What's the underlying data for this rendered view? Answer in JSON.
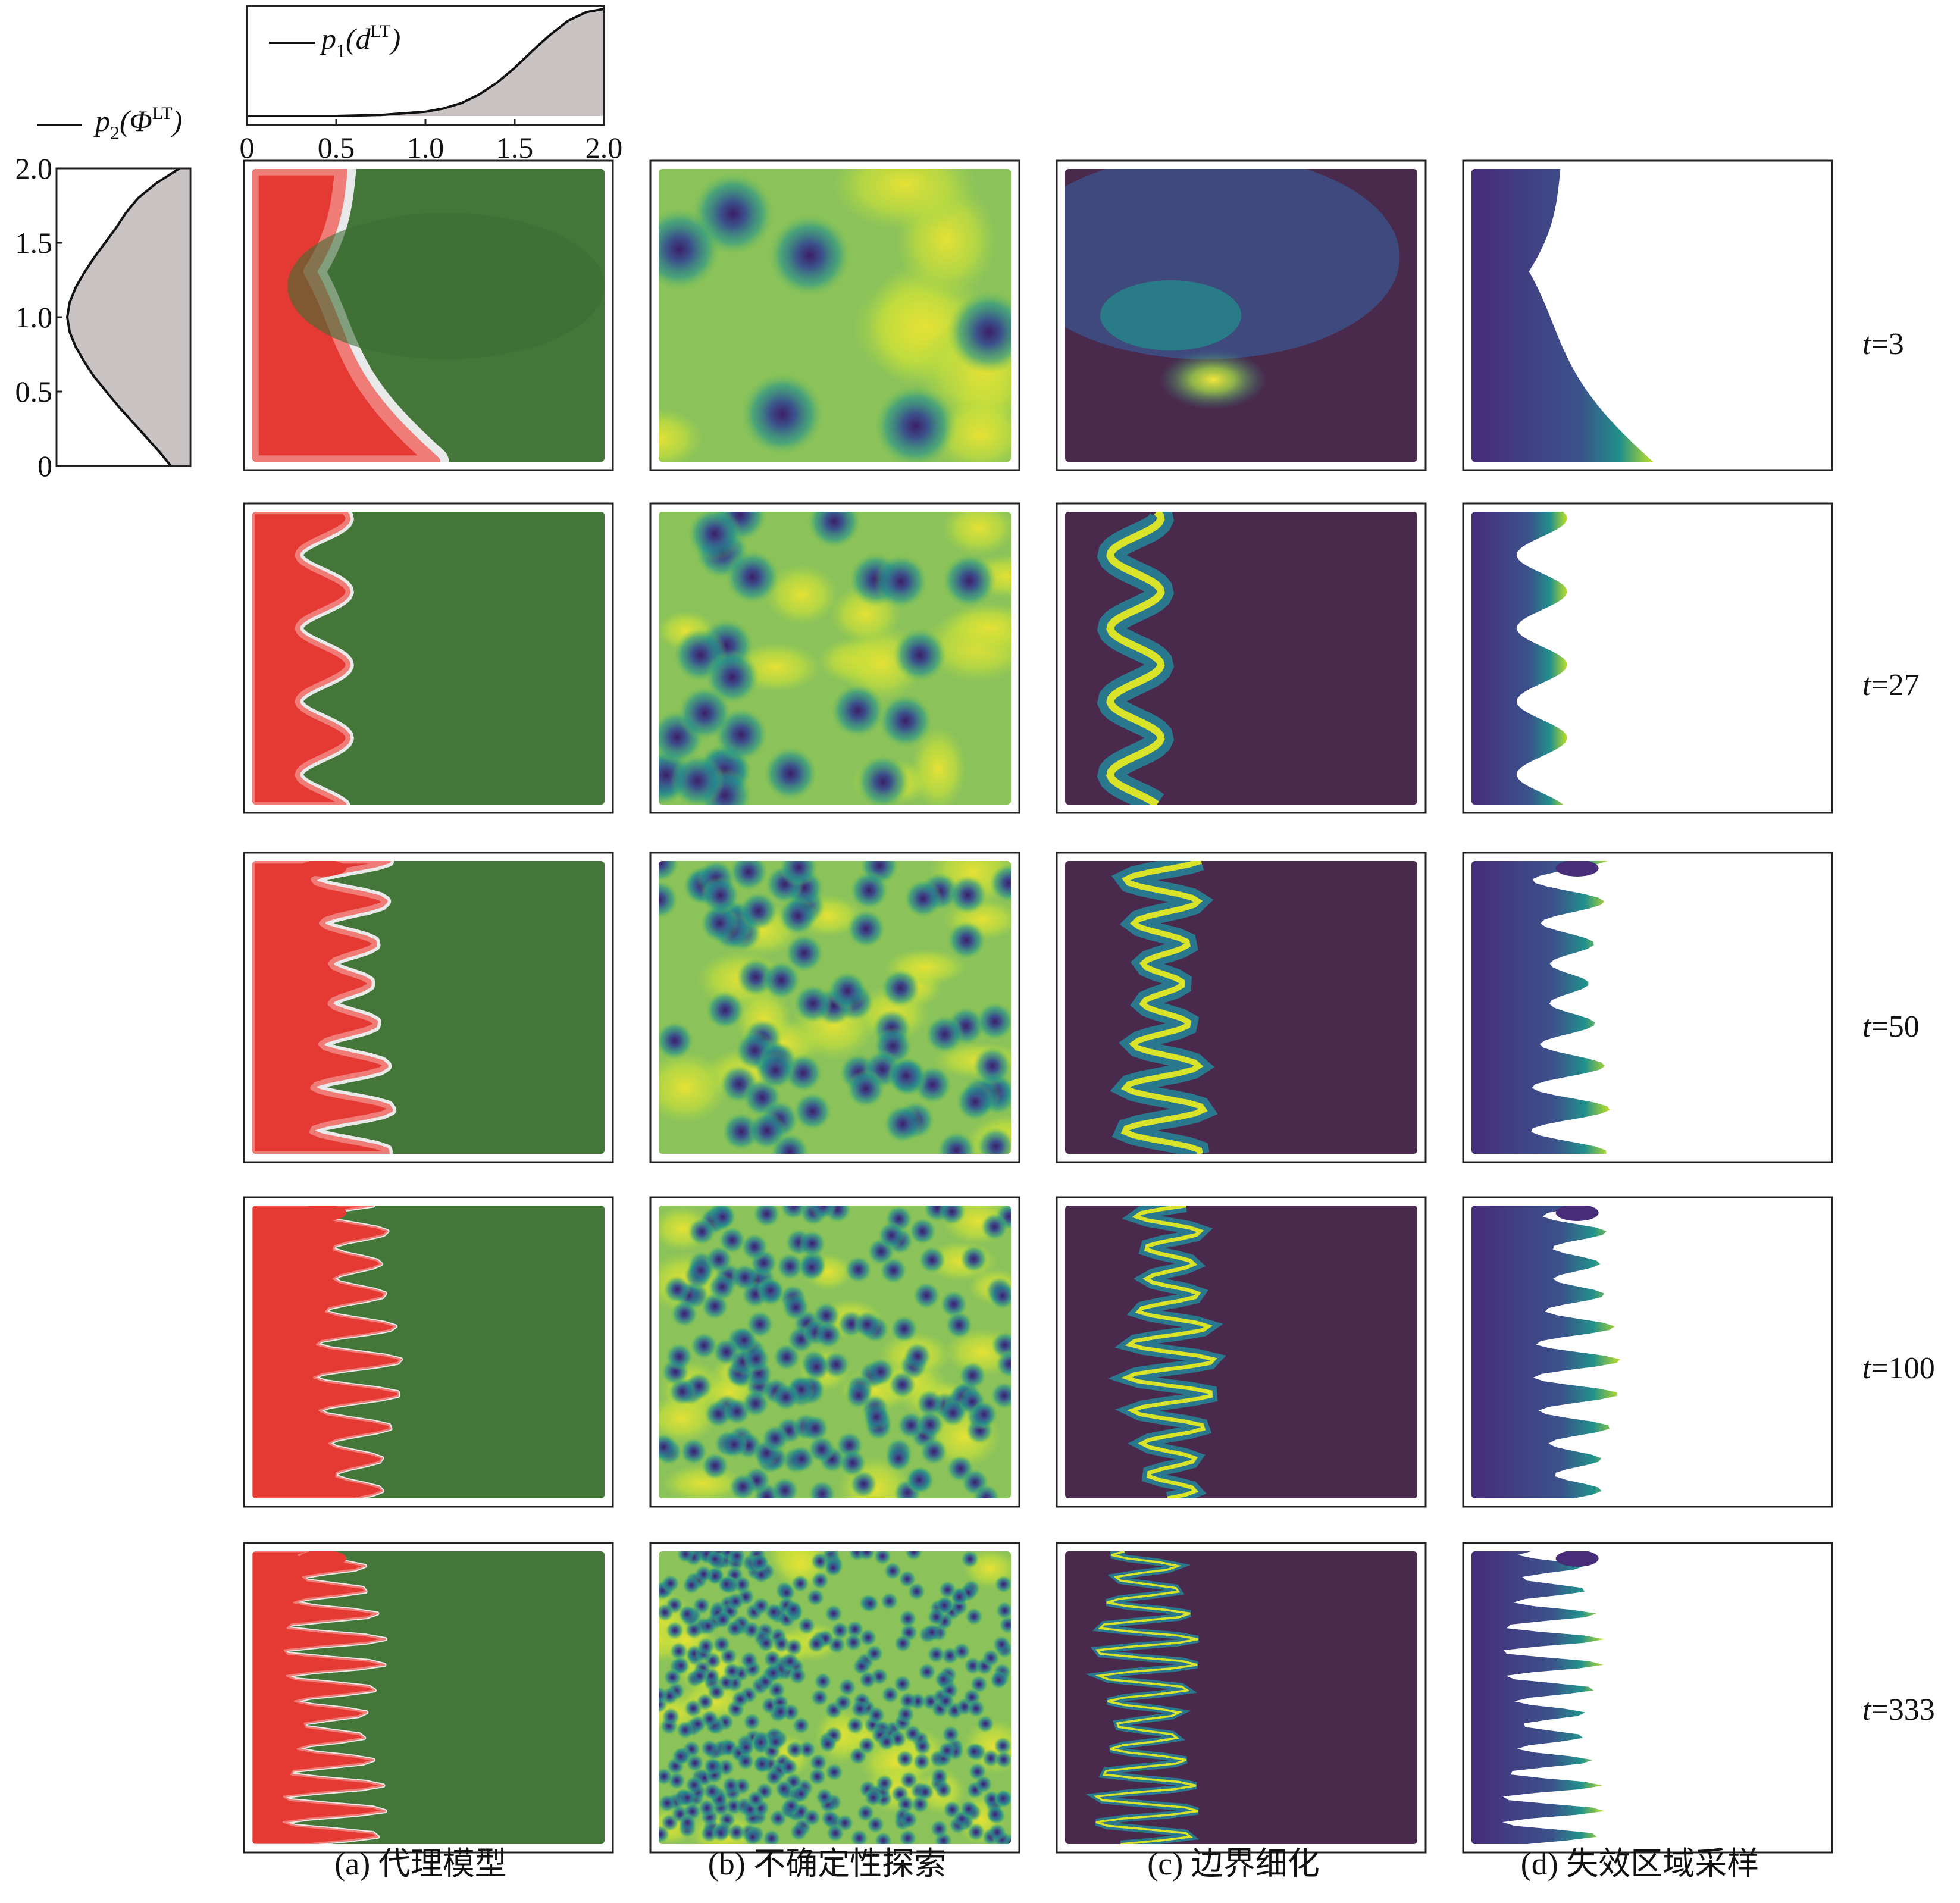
{
  "top_marginal": {
    "legend": {
      "base": "p",
      "sub": "1",
      "arg": "d",
      "sup": "LT"
    },
    "x_ticks": [
      "0",
      "0.5",
      "1.0",
      "1.5",
      "2.0"
    ]
  },
  "left_marginal": {
    "legend": {
      "base": "p",
      "sub": "2",
      "arg": "Φ",
      "sup": "LT"
    },
    "y_ticks": [
      "0",
      "0.5",
      "1.0",
      "1.5",
      "2.0"
    ]
  },
  "rows": [
    {
      "prefix": "t",
      "value": "=3"
    },
    {
      "prefix": "t",
      "value": "=27"
    },
    {
      "prefix": "t",
      "value": "=50"
    },
    {
      "prefix": "t",
      "value": "=100"
    },
    {
      "prefix": "t",
      "value": "=333"
    }
  ],
  "columns": [
    {
      "caption": "(a) 代理模型"
    },
    {
      "caption": "(b) 不确定性探索"
    },
    {
      "caption": "(c) 边界细化"
    },
    {
      "caption": "(d) 失效区域采样"
    }
  ],
  "chart_data": [
    {
      "type": "area",
      "orientation": "vertical",
      "xlim": [
        0,
        2
      ],
      "x_ticks": [
        0,
        0.5,
        1.0,
        1.5,
        2.0
      ],
      "x": [
        0,
        0.25,
        0.5,
        0.75,
        1.0,
        1.1,
        1.2,
        1.3,
        1.4,
        1.5,
        1.6,
        1.7,
        1.8,
        1.9,
        2.0
      ],
      "y": [
        0.0,
        0.0,
        0.0,
        0.01,
        0.04,
        0.07,
        0.12,
        0.2,
        0.31,
        0.45,
        0.61,
        0.76,
        0.89,
        0.97,
        1.0
      ]
    },
    {
      "type": "area",
      "orientation": "horizontal",
      "ylim": [
        0,
        2
      ],
      "y_ticks": [
        0,
        0.5,
        1.0,
        1.5,
        2.0
      ],
      "y": [
        0.0,
        0.1,
        0.2,
        0.3,
        0.4,
        0.5,
        0.6,
        0.7,
        0.8,
        0.9,
        1.0,
        1.1,
        1.2,
        1.3,
        1.4,
        1.5,
        1.6,
        1.7,
        1.8,
        1.9,
        2.0
      ],
      "x": [
        0.15,
        0.25,
        0.36,
        0.47,
        0.58,
        0.68,
        0.78,
        0.86,
        0.93,
        0.98,
        1.0,
        0.98,
        0.93,
        0.86,
        0.78,
        0.69,
        0.6,
        0.52,
        0.42,
        0.27,
        0.08
      ]
    },
    {
      "type": "heatmap",
      "panel_grid": {
        "rows": 5,
        "columns": 4
      },
      "boundary_x": [
        0.27,
        0.2,
        0.28,
        0.3,
        0.23
      ],
      "boundary_amplitude": [
        0.1,
        0.12,
        0.14,
        0.16,
        0.2
      ],
      "boundary_frequency": [
        1.5,
        4,
        7,
        9,
        12
      ],
      "exploration_points": [
        6,
        25,
        70,
        160,
        420
      ]
    }
  ]
}
